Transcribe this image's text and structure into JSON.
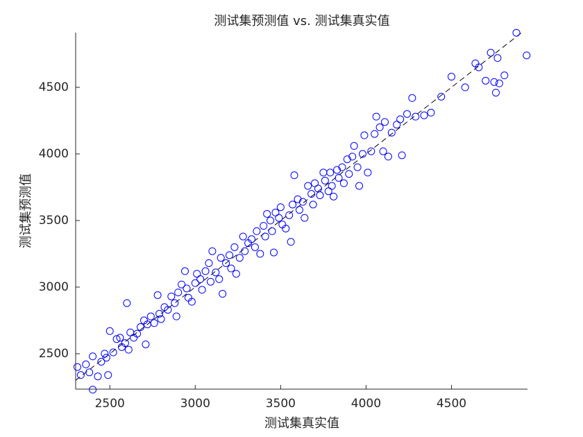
{
  "chart_data": {
    "type": "scatter",
    "title": "测试集预测值 vs. 测试集真实值",
    "x_label": "测试集真实值",
    "y_label": "测试集预测值",
    "color": "#0000ff",
    "identity_line": true,
    "xlim": [
      2300,
      4945
    ],
    "ylim": [
      2234,
      4911
    ],
    "xticks": [
      2500,
      3000,
      3500,
      4000,
      4500
    ],
    "yticks": [
      2500,
      3000,
      3500,
      4000,
      4500
    ],
    "x": [
      2310,
      2330,
      2360,
      2380,
      2400,
      2400,
      2430,
      2450,
      2470,
      2480,
      2490,
      2500,
      2520,
      2540,
      2560,
      2570,
      2590,
      2600,
      2610,
      2620,
      2640,
      2660,
      2680,
      2700,
      2710,
      2720,
      2740,
      2760,
      2780,
      2790,
      2800,
      2820,
      2840,
      2860,
      2880,
      2890,
      2900,
      2920,
      2940,
      2950,
      2960,
      2980,
      3000,
      3010,
      3030,
      3040,
      3060,
      3080,
      3090,
      3100,
      3120,
      3140,
      3150,
      3160,
      3180,
      3200,
      3210,
      3230,
      3240,
      3260,
      3280,
      3290,
      3310,
      3330,
      3350,
      3360,
      3380,
      3400,
      3410,
      3420,
      3440,
      3450,
      3460,
      3470,
      3490,
      3500,
      3510,
      3530,
      3550,
      3560,
      3570,
      3580,
      3600,
      3610,
      3630,
      3640,
      3660,
      3680,
      3690,
      3700,
      3720,
      3730,
      3750,
      3760,
      3780,
      3790,
      3800,
      3810,
      3830,
      3840,
      3860,
      3870,
      3890,
      3900,
      3920,
      3930,
      3950,
      3960,
      3980,
      3990,
      4010,
      4030,
      4050,
      4060,
      4080,
      4100,
      4110,
      4130,
      4150,
      4180,
      4200,
      4210,
      4240,
      4270,
      4290,
      4340,
      4380,
      4440,
      4500,
      4580,
      4640,
      4660,
      4700,
      4730,
      4750,
      4760,
      4770,
      4780,
      4810,
      4880,
      4940
    ],
    "y": [
      2400,
      2340,
      2420,
      2360,
      2480,
      2230,
      2330,
      2440,
      2500,
      2470,
      2340,
      2670,
      2510,
      2610,
      2620,
      2550,
      2580,
      2880,
      2530,
      2660,
      2620,
      2650,
      2700,
      2750,
      2570,
      2720,
      2780,
      2730,
      2940,
      2800,
      2760,
      2850,
      2830,
      2930,
      2880,
      2780,
      2960,
      3020,
      3120,
      2990,
      2920,
      2890,
      3030,
      3100,
      3060,
      2980,
      3120,
      3180,
      3040,
      3270,
      3110,
      3060,
      3220,
      2950,
      3180,
      3240,
      3140,
      3300,
      3100,
      3220,
      3380,
      3270,
      3330,
      3360,
      3300,
      3420,
      3250,
      3460,
      3380,
      3550,
      3500,
      3420,
      3260,
      3560,
      3520,
      3600,
      3470,
      3440,
      3540,
      3340,
      3620,
      3840,
      3660,
      3580,
      3640,
      3520,
      3760,
      3700,
      3620,
      3780,
      3740,
      3690,
      3860,
      3800,
      3720,
      3860,
      3760,
      3680,
      3880,
      3820,
      3900,
      3780,
      3960,
      3850,
      3980,
      4060,
      3900,
      3760,
      4000,
      4140,
      3860,
      4020,
      4150,
      4280,
      4200,
      4020,
      4240,
      3980,
      4160,
      4220,
      4260,
      3990,
      4300,
      4420,
      4280,
      4290,
      4310,
      4430,
      4580,
      4500,
      4680,
      4650,
      4550,
      4760,
      4540,
      4460,
      4720,
      4530,
      4590,
      4910,
      4740
    ]
  }
}
